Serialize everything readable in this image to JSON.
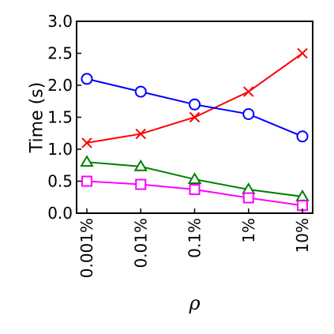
{
  "chart_data": {
    "type": "line",
    "title": "",
    "xlabel": "ρ",
    "ylabel": "Time (s)",
    "categories": [
      "0.001%",
      "0.01%",
      "0.1%",
      "1%",
      "10%"
    ],
    "ylim": [
      0,
      3.0
    ],
    "yticks": [
      "0.0",
      "0.5",
      "1.0",
      "1.5",
      "2.0",
      "2.5",
      "3.0"
    ],
    "grid": false,
    "legend": "none",
    "series": [
      {
        "color": "#ff0000",
        "marker": "x",
        "values": [
          1.1,
          1.24,
          1.5,
          1.9,
          2.5
        ]
      },
      {
        "color": "#0000ff",
        "marker": "circle",
        "values": [
          2.1,
          1.9,
          1.7,
          1.55,
          1.2
        ]
      },
      {
        "color": "#008000",
        "marker": "triangle",
        "values": [
          0.8,
          0.73,
          0.53,
          0.37,
          0.26
        ]
      },
      {
        "color": "#ff00ff",
        "marker": "square",
        "values": [
          0.5,
          0.45,
          0.37,
          0.24,
          0.12
        ]
      }
    ]
  }
}
